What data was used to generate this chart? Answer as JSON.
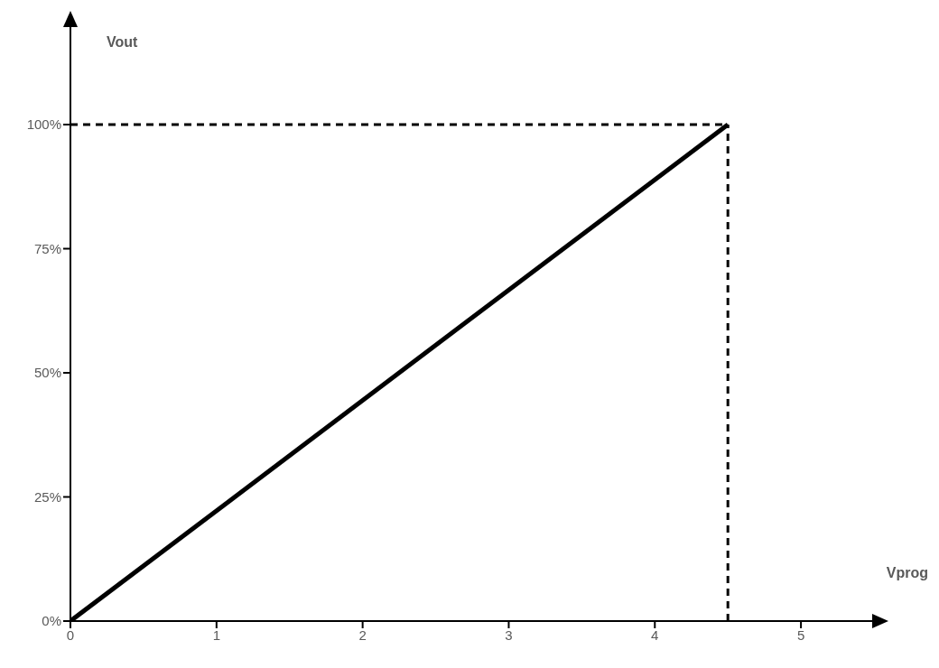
{
  "chart_data": {
    "type": "line",
    "xlabel": "Vprog",
    "ylabel": "Vout",
    "x": [
      0,
      4.5
    ],
    "series": [
      {
        "color": "#000000",
        "values": [
          0,
          100
        ]
      }
    ],
    "xlim": [
      0,
      5.5
    ],
    "ylim": [
      0,
      120
    ],
    "xticks": [
      0,
      1,
      2,
      3,
      4,
      5
    ],
    "yticks": [
      {
        "value": 0,
        "label": "0%"
      },
      {
        "value": 25,
        "label": "25%"
      },
      {
        "value": 50,
        "label": "50%"
      },
      {
        "value": 75,
        "label": "75%"
      },
      {
        "value": 100,
        "label": "100%"
      }
    ],
    "ref_lines": [
      {
        "axis": "y",
        "value": 100,
        "color": "#000000",
        "line_style": "dashed"
      },
      {
        "axis": "x",
        "value": 4.5,
        "color": "#000000",
        "line_style": "dashed"
      }
    ],
    "grid": false,
    "legend": false,
    "marker": "none",
    "line_style": "solid"
  }
}
